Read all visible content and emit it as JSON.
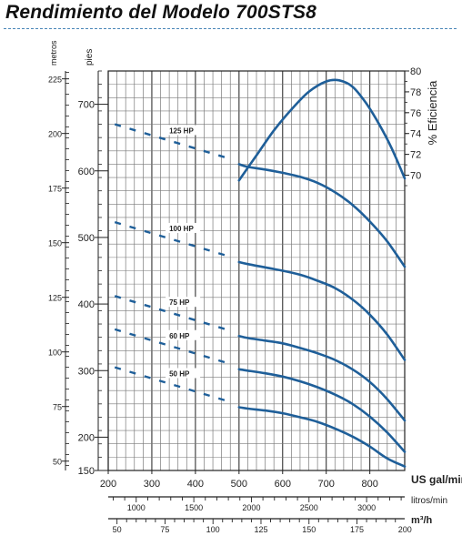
{
  "title": "Rendimiento del Modelo 700STS8",
  "chart_data": {
    "type": "line",
    "title": "Rendimiento del Modelo 700STS8",
    "x_axes": {
      "primary": {
        "label": "US gal/min",
        "range": [
          200,
          880
        ],
        "ticks": [
          200,
          300,
          400,
          500,
          600,
          700,
          800
        ]
      },
      "secondary": {
        "label": "litros/min",
        "ticks": [
          1000,
          1500,
          2000,
          2500,
          3000
        ]
      },
      "tertiary": {
        "label": "m³/h",
        "ticks": [
          50,
          75,
          100,
          125,
          150,
          175,
          200
        ]
      }
    },
    "y_axes": {
      "feet": {
        "label": "pies",
        "range": [
          150,
          750
        ],
        "ticks": [
          150,
          200,
          300,
          400,
          500,
          600,
          700
        ]
      },
      "meters": {
        "label": "metros",
        "ticks": [
          50,
          75,
          100,
          125,
          150,
          175,
          200,
          225
        ]
      },
      "efficiency": {
        "label": "% Eficiencia",
        "range": [
          69,
          80
        ],
        "ticks": [
          70,
          72,
          74,
          76,
          78,
          80
        ]
      }
    },
    "grid": true,
    "series": [
      {
        "name": "125 HP",
        "dashed_x": [
          215,
          480
        ],
        "x": [
          500,
          520,
          560,
          600,
          640,
          680,
          720,
          760,
          800,
          840,
          880
        ],
        "y": [
          610,
          606,
          602,
          597,
          591,
          582,
          568,
          549,
          524,
          494,
          456
        ]
      },
      {
        "name": "100 HP",
        "dashed_x": [
          215,
          480
        ],
        "x": [
          500,
          520,
          560,
          600,
          640,
          680,
          720,
          760,
          800,
          840,
          880
        ],
        "y": [
          463,
          460,
          455,
          450,
          444,
          435,
          424,
          407,
          384,
          354,
          316
        ]
      },
      {
        "name": "75 HP",
        "dashed_x": [
          215,
          480
        ],
        "x": [
          500,
          520,
          560,
          600,
          640,
          680,
          720,
          760,
          800,
          840,
          880
        ],
        "y": [
          352,
          349,
          345,
          341,
          334,
          326,
          316,
          302,
          283,
          257,
          225
        ]
      },
      {
        "name": "60 HP",
        "dashed_x": [
          215,
          480
        ],
        "x": [
          500,
          520,
          560,
          600,
          640,
          680,
          720,
          760,
          800,
          840,
          880
        ],
        "y": [
          302,
          300,
          296,
          291,
          284,
          275,
          264,
          250,
          231,
          207,
          178
        ]
      },
      {
        "name": "50 HP",
        "dashed_x": [
          215,
          480
        ],
        "x": [
          500,
          520,
          560,
          600,
          640,
          680,
          720,
          760,
          800,
          840,
          880
        ],
        "y": [
          245,
          243,
          240,
          236,
          230,
          223,
          213,
          201,
          186,
          168,
          156
        ]
      }
    ],
    "efficiency_curve": {
      "x": [
        500,
        540,
        580,
        620,
        660,
        700,
        730,
        760,
        790,
        820,
        850,
        880
      ],
      "y": [
        69.5,
        71.9,
        74.3,
        76.3,
        78.0,
        79.0,
        79.1,
        78.5,
        77.0,
        75.0,
        72.6,
        69.7
      ]
    },
    "legend": "inline labels",
    "colors": {
      "curve": "#1f5f99",
      "grid": "#7a7a7a",
      "grid_minor": "#c4c4c4"
    }
  }
}
